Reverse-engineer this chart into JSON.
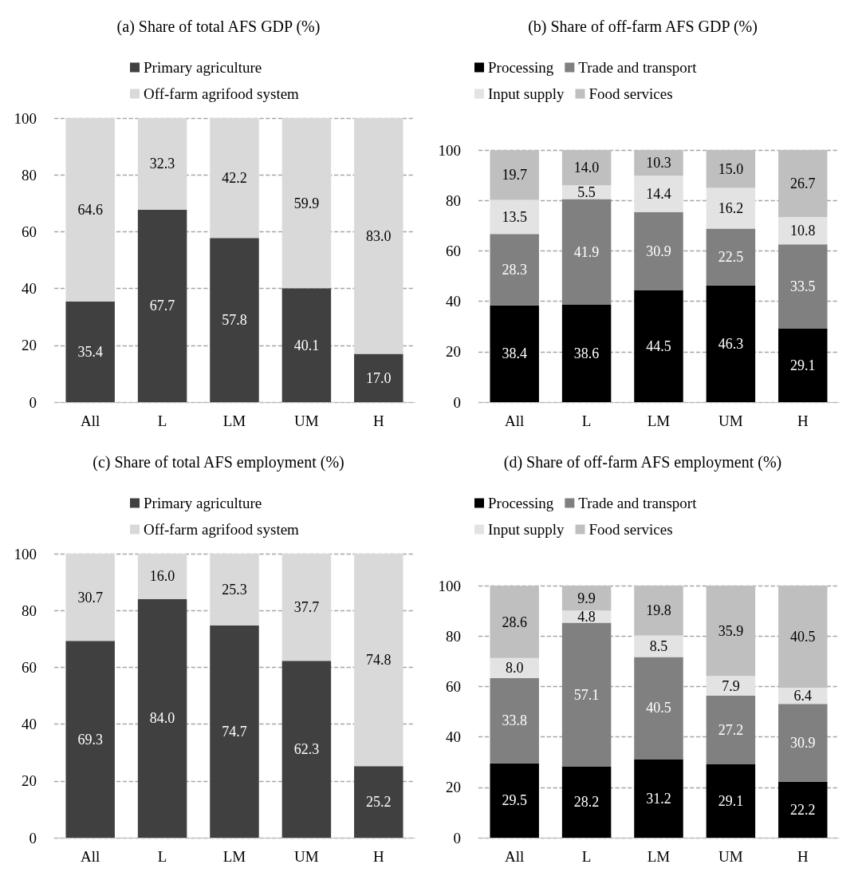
{
  "chart_data": [
    {
      "type": "bar",
      "title": "(a) Share of total AFS GDP (%)",
      "categories": [
        "All",
        "L",
        "LM",
        "UM",
        "H"
      ],
      "stacked": true,
      "ylim": [
        0,
        100
      ],
      "yticks": [
        0,
        20,
        40,
        60,
        80,
        100
      ],
      "grid": "y",
      "legend": "top",
      "series": [
        {
          "name": "Primary agriculture",
          "color": "#404040",
          "values": [
            35.4,
            67.7,
            57.8,
            40.1,
            17.0
          ],
          "value_labels": [
            "35.4",
            "67.7",
            "57.8",
            "40.1",
            "17.0"
          ]
        },
        {
          "name": "Off-farm agrifood system",
          "color": "#d9d9d9",
          "values": [
            64.6,
            32.3,
            42.2,
            59.9,
            83.0
          ],
          "value_labels": [
            "64.6",
            "32.3",
            "42.2",
            "59.9",
            "83.0"
          ]
        }
      ]
    },
    {
      "type": "bar",
      "title": "(b) Share of off-farm AFS GDP (%)",
      "categories": [
        "All",
        "L",
        "LM",
        "UM",
        "H"
      ],
      "stacked": true,
      "ylim": [
        0,
        100
      ],
      "yticks": [
        0,
        20,
        40,
        60,
        80,
        100
      ],
      "grid": "y",
      "legend": "top",
      "series": [
        {
          "name": "Processing",
          "color": "#000000",
          "values": [
            38.4,
            38.6,
            44.5,
            46.3,
            29.1
          ],
          "value_labels": [
            "38.4",
            "38.6",
            "44.5",
            "46.3",
            "29.1"
          ]
        },
        {
          "name": "Trade and transport",
          "color": "#808080",
          "values": [
            28.3,
            41.9,
            30.9,
            22.5,
            33.5
          ],
          "value_labels": [
            "28.3",
            "41.9",
            "30.9",
            "22.5",
            "33.5"
          ]
        },
        {
          "name": "Input supply",
          "color": "#e3e3e3",
          "values": [
            13.5,
            5.5,
            14.4,
            16.2,
            10.8
          ],
          "value_labels": [
            "13.5",
            "5.5",
            "14.4",
            "16.2",
            "10.8"
          ]
        },
        {
          "name": "Food services",
          "color": "#bfbfbf",
          "values": [
            19.7,
            14.0,
            10.3,
            15.0,
            26.7
          ],
          "value_labels": [
            "19.7",
            "14.0",
            "10.3",
            "15.0",
            "26.7"
          ]
        }
      ]
    },
    {
      "type": "bar",
      "title": "(c) Share of total AFS employment (%)",
      "categories": [
        "All",
        "L",
        "LM",
        "UM",
        "H"
      ],
      "stacked": true,
      "ylim": [
        0,
        100
      ],
      "yticks": [
        0,
        20,
        40,
        60,
        80,
        100
      ],
      "grid": "y",
      "legend": "top",
      "series": [
        {
          "name": "Primary agriculture",
          "color": "#404040",
          "values": [
            69.3,
            84.0,
            74.7,
            62.3,
            25.2
          ],
          "value_labels": [
            "69.3",
            "84.0",
            "74.7",
            "62.3",
            "25.2"
          ]
        },
        {
          "name": "Off-farm agrifood system",
          "color": "#d9d9d9",
          "values": [
            30.7,
            16.0,
            25.3,
            37.7,
            74.8
          ],
          "value_labels": [
            "30.7",
            "16.0",
            "25.3",
            "37.7",
            "74.8"
          ]
        }
      ]
    },
    {
      "type": "bar",
      "title": "(d) Share of off-farm AFS employment (%)",
      "categories": [
        "All",
        "L",
        "LM",
        "UM",
        "H"
      ],
      "stacked": true,
      "ylim": [
        0,
        100
      ],
      "yticks": [
        0,
        20,
        40,
        60,
        80,
        100
      ],
      "grid": "y",
      "legend": "top",
      "series": [
        {
          "name": "Processing",
          "color": "#000000",
          "values": [
            29.5,
            28.2,
            31.2,
            29.1,
            22.2
          ],
          "value_labels": [
            "29.5",
            "28.2",
            "31.2",
            "29.1",
            "22.2"
          ]
        },
        {
          "name": "Trade and transport",
          "color": "#808080",
          "values": [
            33.8,
            57.1,
            40.5,
            27.2,
            30.9
          ],
          "value_labels": [
            "33.8",
            "57.1",
            "40.5",
            "27.2",
            "30.9"
          ]
        },
        {
          "name": "Input supply",
          "color": "#e3e3e3",
          "values": [
            8.0,
            4.8,
            8.5,
            7.9,
            6.4
          ],
          "value_labels": [
            "8.0",
            "4.8",
            "8.5",
            "7.9",
            "6.4"
          ]
        },
        {
          "name": "Food services",
          "color": "#bfbfbf",
          "values": [
            28.6,
            9.9,
            19.8,
            35.9,
            40.5
          ],
          "value_labels": [
            "28.6",
            "9.9",
            "19.8",
            "35.9",
            "40.5"
          ]
        }
      ]
    }
  ]
}
